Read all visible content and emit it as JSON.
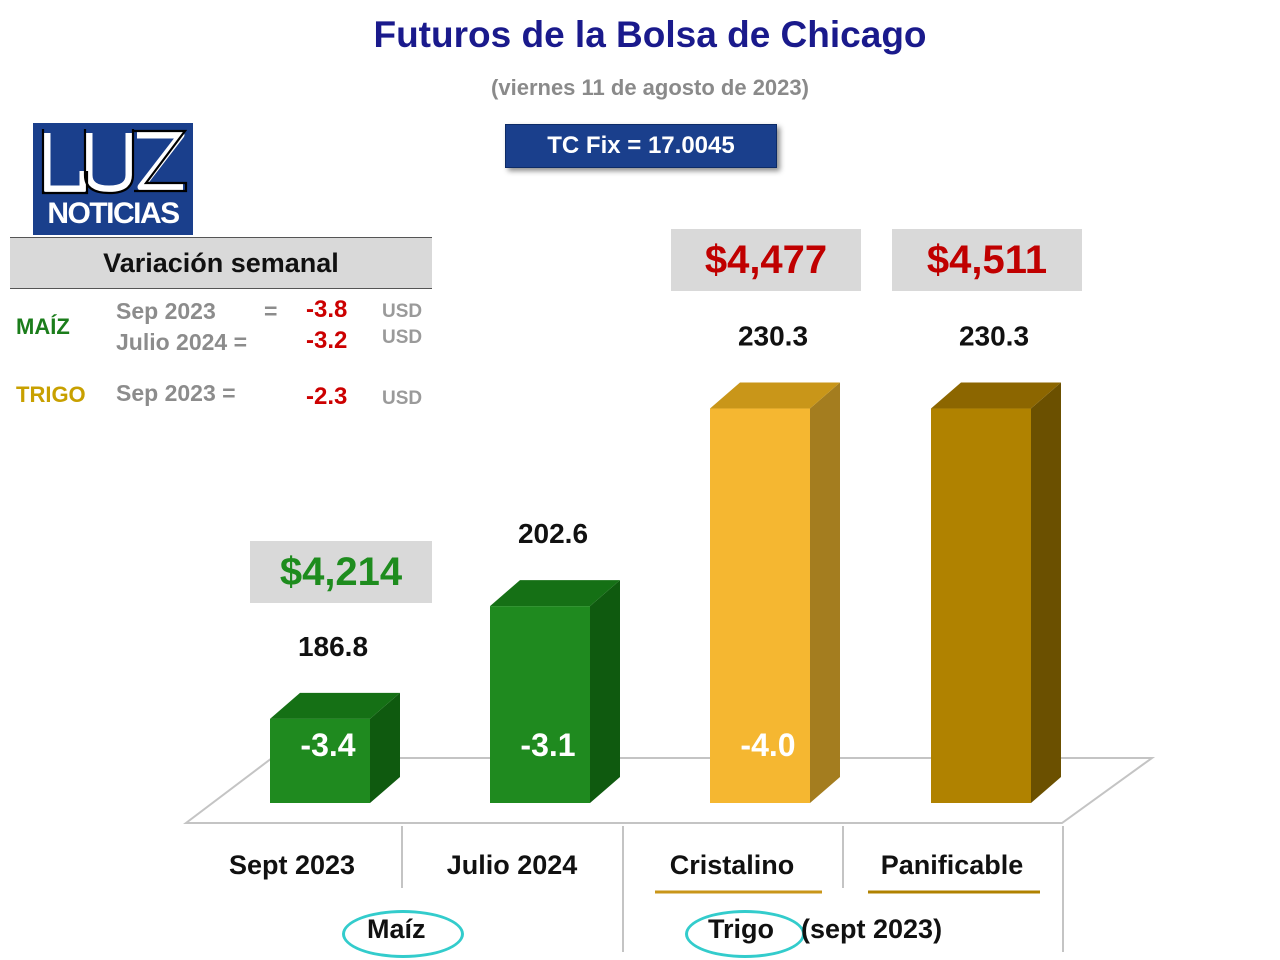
{
  "header": {
    "title": "Futuros de la Bolsa de Chicago",
    "date": "(viernes 11 de agosto de 2023)",
    "tc_fix": "TC Fix = 17.0045"
  },
  "logo": {
    "top": "LUZ",
    "bottom": "NOTICIAS"
  },
  "weekly": {
    "heading": "Variación semanal",
    "maiz_label": "MAÍZ",
    "maiz_rows": [
      {
        "period": "Sep 2023",
        "eq": "=",
        "value": "-3.8",
        "unit": "USD"
      },
      {
        "period": "Julio 2024 =",
        "eq": "",
        "value": "-3.2",
        "unit": "USD"
      }
    ],
    "trigo_label": "TRIGO",
    "trigo_row": {
      "period": "Sep 2023 =",
      "value": "-2.3",
      "unit": "USD"
    }
  },
  "groups": {
    "maiz": "Maíz",
    "trigo": "Trigo",
    "trigo_note": "(sept 2023)"
  },
  "colors": {
    "maiz_front": "#1f8a1f",
    "maiz_top": "#157015",
    "maiz_side": "#0f5a0f",
    "cristalino_front": "#f5b731",
    "cristalino_top": "#c99619",
    "cristalino_side": "#a47d1f",
    "panificable_front": "#b08200",
    "panificable_top": "#8c6600",
    "panificable_side": "#6b5000",
    "price_green": "#1e8c1e",
    "price_red": "#c00000"
  },
  "chart_data": {
    "type": "bar",
    "categories": [
      "Sept 2023",
      "Julio 2024",
      "Cristalino",
      "Panificable"
    ],
    "values": [
      186.8,
      202.6,
      230.3,
      230.3
    ],
    "value_labels": [
      "186.8",
      "202.6",
      "230.3",
      "230.3"
    ],
    "weekly_change": [
      "-3.4",
      "-3.1",
      "-4.0",
      ""
    ],
    "price_mxn": [
      "$4,214",
      "",
      "$4,477",
      "$4,511"
    ],
    "ylim": [
      175,
      235
    ]
  }
}
